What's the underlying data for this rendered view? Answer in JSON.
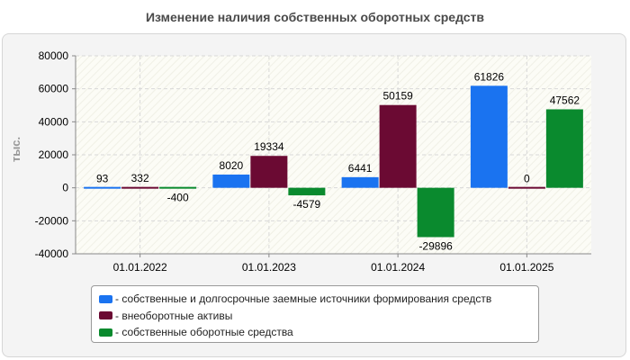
{
  "chart_data": {
    "type": "bar",
    "title": "Изменение наличия собственных оборотных средств",
    "ylabel": "тыс.",
    "xlabel": "",
    "categories": [
      "01.01.2022",
      "01.01.2023",
      "01.01.2024",
      "01.01.2025"
    ],
    "ylim": [
      -40000,
      80000
    ],
    "yticks": [
      80000,
      60000,
      40000,
      20000,
      0,
      -20000,
      -40000
    ],
    "grid": true,
    "legend_position": "bottom",
    "series": [
      {
        "name": "- собственные и долгосрочные заемные источники формирования средств",
        "color": "#1a73f0",
        "values": [
          93,
          8020,
          6441,
          61826
        ]
      },
      {
        "name": "- внеоборотные активы",
        "color": "#6b0a33",
        "values": [
          332,
          19334,
          50159,
          0
        ]
      },
      {
        "name": "- собственные оборотные средства",
        "color": "#0a8a2e",
        "values": [
          -400,
          -4579,
          -29896,
          47562
        ]
      }
    ]
  }
}
